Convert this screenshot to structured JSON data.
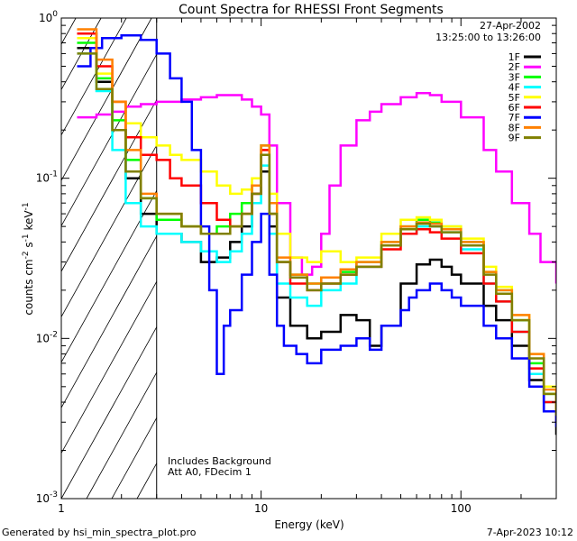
{
  "chart_data": {
    "type": "line",
    "title": "Count Spectra for RHESSI Front Segments",
    "xlabel": "Energy (keV)",
    "ylabel": "counts cm-2 s-1 keV-1",
    "ylabel_parts": {
      "base": "counts cm",
      "e1": "-2",
      "mid1": " s",
      "e2": "-1",
      "mid2": " keV",
      "e3": "-1"
    },
    "xscale": "log",
    "yscale": "log",
    "xlim": [
      1,
      300
    ],
    "ylim": [
      0.001,
      1
    ],
    "x_tick_labels": [
      "1",
      "10",
      "100"
    ],
    "y_tick_labels": [
      {
        "base": "10",
        "exp": "0",
        "value": 1
      },
      {
        "base": "10",
        "exp": "-1",
        "value": 0.1
      },
      {
        "base": "10",
        "exp": "-2",
        "value": 0.01
      },
      {
        "base": "10",
        "exp": "-3",
        "value": 0.001
      }
    ],
    "date": "27-Apr-2002",
    "time_range": "13:25:00 to 13:26:00",
    "annotations": [
      "Includes Background",
      "Att A0, FDecim 1"
    ],
    "hatched_region_max_keV": 3,
    "legend_position": "top-right",
    "series": [
      {
        "name": "1F",
        "color": "#000000",
        "points": [
          [
            1.2,
            0.65
          ],
          [
            1.5,
            0.4
          ],
          [
            1.8,
            0.2
          ],
          [
            2.1,
            0.1
          ],
          [
            2.5,
            0.06
          ],
          [
            3,
            0.045
          ],
          [
            4,
            0.04
          ],
          [
            5,
            0.03
          ],
          [
            6,
            0.032
          ],
          [
            7,
            0.04
          ],
          [
            8,
            0.05
          ],
          [
            9,
            0.08
          ],
          [
            10,
            0.11
          ],
          [
            11,
            0.05
          ],
          [
            12,
            0.018
          ],
          [
            14,
            0.012
          ],
          [
            17,
            0.01
          ],
          [
            20,
            0.011
          ],
          [
            25,
            0.014
          ],
          [
            30,
            0.013
          ],
          [
            35,
            0.009
          ],
          [
            40,
            0.012
          ],
          [
            50,
            0.022
          ],
          [
            60,
            0.029
          ],
          [
            70,
            0.031
          ],
          [
            80,
            0.028
          ],
          [
            90,
            0.025
          ],
          [
            100,
            0.022
          ],
          [
            130,
            0.016
          ],
          [
            150,
            0.013
          ],
          [
            180,
            0.009
          ],
          [
            220,
            0.0055
          ],
          [
            260,
            0.0035
          ],
          [
            300,
            0.0025
          ]
        ]
      },
      {
        "name": "2F",
        "color": "#ff00ff",
        "points": [
          [
            1.2,
            0.24
          ],
          [
            1.5,
            0.25
          ],
          [
            1.8,
            0.26
          ],
          [
            2.1,
            0.28
          ],
          [
            2.5,
            0.29
          ],
          [
            3,
            0.3
          ],
          [
            4,
            0.31
          ],
          [
            5,
            0.32
          ],
          [
            6,
            0.33
          ],
          [
            7,
            0.33
          ],
          [
            8,
            0.31
          ],
          [
            9,
            0.28
          ],
          [
            10,
            0.25
          ],
          [
            11,
            0.16
          ],
          [
            12,
            0.07
          ],
          [
            14,
            0.032
          ],
          [
            16,
            0.025
          ],
          [
            18,
            0.028
          ],
          [
            20,
            0.045
          ],
          [
            22,
            0.09
          ],
          [
            25,
            0.16
          ],
          [
            30,
            0.23
          ],
          [
            35,
            0.26
          ],
          [
            40,
            0.29
          ],
          [
            50,
            0.32
          ],
          [
            60,
            0.34
          ],
          [
            70,
            0.33
          ],
          [
            80,
            0.3
          ],
          [
            100,
            0.24
          ],
          [
            130,
            0.15
          ],
          [
            150,
            0.11
          ],
          [
            180,
            0.07
          ],
          [
            220,
            0.045
          ],
          [
            250,
            0.03
          ],
          [
            300,
            0.022
          ]
        ]
      },
      {
        "name": "3F",
        "color": "#00ff00",
        "points": [
          [
            1.2,
            0.7
          ],
          [
            1.5,
            0.42
          ],
          [
            1.8,
            0.23
          ],
          [
            2.1,
            0.13
          ],
          [
            2.5,
            0.075
          ],
          [
            3,
            0.055
          ],
          [
            4,
            0.05
          ],
          [
            5,
            0.045
          ],
          [
            6,
            0.05
          ],
          [
            7,
            0.06
          ],
          [
            8,
            0.07
          ],
          [
            9,
            0.09
          ],
          [
            10,
            0.16
          ],
          [
            11,
            0.06
          ],
          [
            12,
            0.03
          ],
          [
            14,
            0.025
          ],
          [
            17,
            0.022
          ],
          [
            20,
            0.024
          ],
          [
            25,
            0.026
          ],
          [
            30,
            0.03
          ],
          [
            40,
            0.04
          ],
          [
            50,
            0.05
          ],
          [
            60,
            0.055
          ],
          [
            70,
            0.053
          ],
          [
            80,
            0.05
          ],
          [
            100,
            0.04
          ],
          [
            130,
            0.026
          ],
          [
            150,
            0.02
          ],
          [
            180,
            0.013
          ],
          [
            220,
            0.007
          ],
          [
            260,
            0.0045
          ],
          [
            300,
            0.0032
          ]
        ]
      },
      {
        "name": "4F",
        "color": "#00ffff",
        "points": [
          [
            1.2,
            0.6
          ],
          [
            1.5,
            0.35
          ],
          [
            1.8,
            0.15
          ],
          [
            2.1,
            0.07
          ],
          [
            2.5,
            0.05
          ],
          [
            3,
            0.045
          ],
          [
            4,
            0.04
          ],
          [
            5,
            0.035
          ],
          [
            6,
            0.03
          ],
          [
            7,
            0.035
          ],
          [
            8,
            0.045
          ],
          [
            9,
            0.07
          ],
          [
            10,
            0.12
          ],
          [
            11,
            0.045
          ],
          [
            12,
            0.022
          ],
          [
            14,
            0.018
          ],
          [
            17,
            0.016
          ],
          [
            20,
            0.02
          ],
          [
            25,
            0.022
          ],
          [
            30,
            0.028
          ],
          [
            40,
            0.038
          ],
          [
            50,
            0.045
          ],
          [
            60,
            0.05
          ],
          [
            70,
            0.05
          ],
          [
            80,
            0.046
          ],
          [
            100,
            0.036
          ],
          [
            130,
            0.022
          ],
          [
            150,
            0.017
          ],
          [
            180,
            0.011
          ],
          [
            220,
            0.006
          ],
          [
            260,
            0.004
          ],
          [
            300,
            0.003
          ]
        ]
      },
      {
        "name": "5F",
        "color": "#ffff00",
        "points": [
          [
            1.2,
            0.75
          ],
          [
            1.5,
            0.45
          ],
          [
            1.8,
            0.3
          ],
          [
            2.1,
            0.22
          ],
          [
            2.5,
            0.18
          ],
          [
            3,
            0.16
          ],
          [
            3.5,
            0.14
          ],
          [
            4,
            0.13
          ],
          [
            5,
            0.11
          ],
          [
            6,
            0.09
          ],
          [
            7,
            0.08
          ],
          [
            8,
            0.085
          ],
          [
            9,
            0.1
          ],
          [
            10,
            0.14
          ],
          [
            11,
            0.08
          ],
          [
            12,
            0.045
          ],
          [
            14,
            0.032
          ],
          [
            17,
            0.03
          ],
          [
            20,
            0.035
          ],
          [
            25,
            0.03
          ],
          [
            30,
            0.032
          ],
          [
            40,
            0.045
          ],
          [
            50,
            0.055
          ],
          [
            60,
            0.057
          ],
          [
            70,
            0.055
          ],
          [
            80,
            0.05
          ],
          [
            100,
            0.042
          ],
          [
            130,
            0.028
          ],
          [
            150,
            0.021
          ],
          [
            180,
            0.014
          ],
          [
            220,
            0.008
          ],
          [
            260,
            0.005
          ],
          [
            300,
            0.0035
          ]
        ]
      },
      {
        "name": "6F",
        "color": "#ff0000",
        "points": [
          [
            1.2,
            0.8
          ],
          [
            1.5,
            0.5
          ],
          [
            1.8,
            0.3
          ],
          [
            2.1,
            0.18
          ],
          [
            2.5,
            0.14
          ],
          [
            3,
            0.13
          ],
          [
            3.5,
            0.1
          ],
          [
            4,
            0.09
          ],
          [
            5,
            0.07
          ],
          [
            6,
            0.055
          ],
          [
            7,
            0.05
          ],
          [
            8,
            0.06
          ],
          [
            9,
            0.08
          ],
          [
            10,
            0.15
          ],
          [
            11,
            0.06
          ],
          [
            12,
            0.03
          ],
          [
            14,
            0.022
          ],
          [
            17,
            0.02
          ],
          [
            20,
            0.022
          ],
          [
            25,
            0.025
          ],
          [
            30,
            0.028
          ],
          [
            40,
            0.036
          ],
          [
            50,
            0.045
          ],
          [
            60,
            0.048
          ],
          [
            70,
            0.046
          ],
          [
            80,
            0.042
          ],
          [
            100,
            0.034
          ],
          [
            130,
            0.022
          ],
          [
            150,
            0.017
          ],
          [
            180,
            0.011
          ],
          [
            220,
            0.0065
          ],
          [
            260,
            0.004
          ],
          [
            300,
            0.003
          ]
        ]
      },
      {
        "name": "7F",
        "color": "#0000ff",
        "points": [
          [
            1.2,
            0.5
          ],
          [
            1.4,
            0.65
          ],
          [
            1.6,
            0.75
          ],
          [
            2,
            0.78
          ],
          [
            2.5,
            0.73
          ],
          [
            3,
            0.6
          ],
          [
            3.5,
            0.42
          ],
          [
            4,
            0.3
          ],
          [
            4.5,
            0.15
          ],
          [
            5,
            0.05
          ],
          [
            5.5,
            0.02
          ],
          [
            6,
            0.006
          ],
          [
            6.5,
            0.012
          ],
          [
            7,
            0.015
          ],
          [
            8,
            0.025
          ],
          [
            9,
            0.04
          ],
          [
            10,
            0.06
          ],
          [
            11,
            0.025
          ],
          [
            12,
            0.012
          ],
          [
            13,
            0.009
          ],
          [
            15,
            0.008
          ],
          [
            17,
            0.007
          ],
          [
            20,
            0.0085
          ],
          [
            25,
            0.009
          ],
          [
            30,
            0.01
          ],
          [
            35,
            0.0085
          ],
          [
            40,
            0.012
          ],
          [
            50,
            0.015
          ],
          [
            55,
            0.018
          ],
          [
            60,
            0.02
          ],
          [
            70,
            0.022
          ],
          [
            80,
            0.02
          ],
          [
            90,
            0.018
          ],
          [
            100,
            0.016
          ],
          [
            130,
            0.012
          ],
          [
            150,
            0.01
          ],
          [
            180,
            0.0075
          ],
          [
            220,
            0.005
          ],
          [
            260,
            0.0035
          ],
          [
            300,
            0.0028
          ]
        ]
      },
      {
        "name": "8F",
        "color": "#ff8000",
        "points": [
          [
            1.2,
            0.85
          ],
          [
            1.5,
            0.55
          ],
          [
            1.8,
            0.3
          ],
          [
            2.1,
            0.15
          ],
          [
            2.5,
            0.08
          ],
          [
            3,
            0.06
          ],
          [
            4,
            0.05
          ],
          [
            5,
            0.045
          ],
          [
            6,
            0.045
          ],
          [
            7,
            0.05
          ],
          [
            8,
            0.06
          ],
          [
            9,
            0.09
          ],
          [
            10,
            0.16
          ],
          [
            11,
            0.07
          ],
          [
            12,
            0.032
          ],
          [
            14,
            0.025
          ],
          [
            17,
            0.022
          ],
          [
            20,
            0.024
          ],
          [
            25,
            0.027
          ],
          [
            30,
            0.03
          ],
          [
            40,
            0.04
          ],
          [
            50,
            0.05
          ],
          [
            60,
            0.053
          ],
          [
            70,
            0.052
          ],
          [
            80,
            0.048
          ],
          [
            100,
            0.04
          ],
          [
            130,
            0.026
          ],
          [
            150,
            0.02
          ],
          [
            180,
            0.014
          ],
          [
            220,
            0.008
          ],
          [
            260,
            0.0048
          ],
          [
            300,
            0.0035
          ]
        ]
      },
      {
        "name": "9F",
        "color": "#808000",
        "points": [
          [
            1.2,
            0.6
          ],
          [
            1.5,
            0.36
          ],
          [
            1.8,
            0.2
          ],
          [
            2.1,
            0.11
          ],
          [
            2.5,
            0.075
          ],
          [
            3,
            0.06
          ],
          [
            4,
            0.05
          ],
          [
            5,
            0.045
          ],
          [
            6,
            0.045
          ],
          [
            7,
            0.05
          ],
          [
            8,
            0.06
          ],
          [
            9,
            0.08
          ],
          [
            10,
            0.14
          ],
          [
            11,
            0.06
          ],
          [
            12,
            0.03
          ],
          [
            14,
            0.024
          ],
          [
            17,
            0.02
          ],
          [
            20,
            0.022
          ],
          [
            25,
            0.025
          ],
          [
            30,
            0.028
          ],
          [
            40,
            0.038
          ],
          [
            50,
            0.048
          ],
          [
            60,
            0.052
          ],
          [
            70,
            0.05
          ],
          [
            80,
            0.046
          ],
          [
            100,
            0.038
          ],
          [
            130,
            0.025
          ],
          [
            150,
            0.019
          ],
          [
            180,
            0.013
          ],
          [
            220,
            0.0075
          ],
          [
            260,
            0.0045
          ],
          [
            300,
            0.0033
          ]
        ]
      }
    ]
  },
  "footer": {
    "generated": "Generated by hsi_min_spectra_plot.pro",
    "timestamp": "7-Apr-2023 10:12"
  }
}
